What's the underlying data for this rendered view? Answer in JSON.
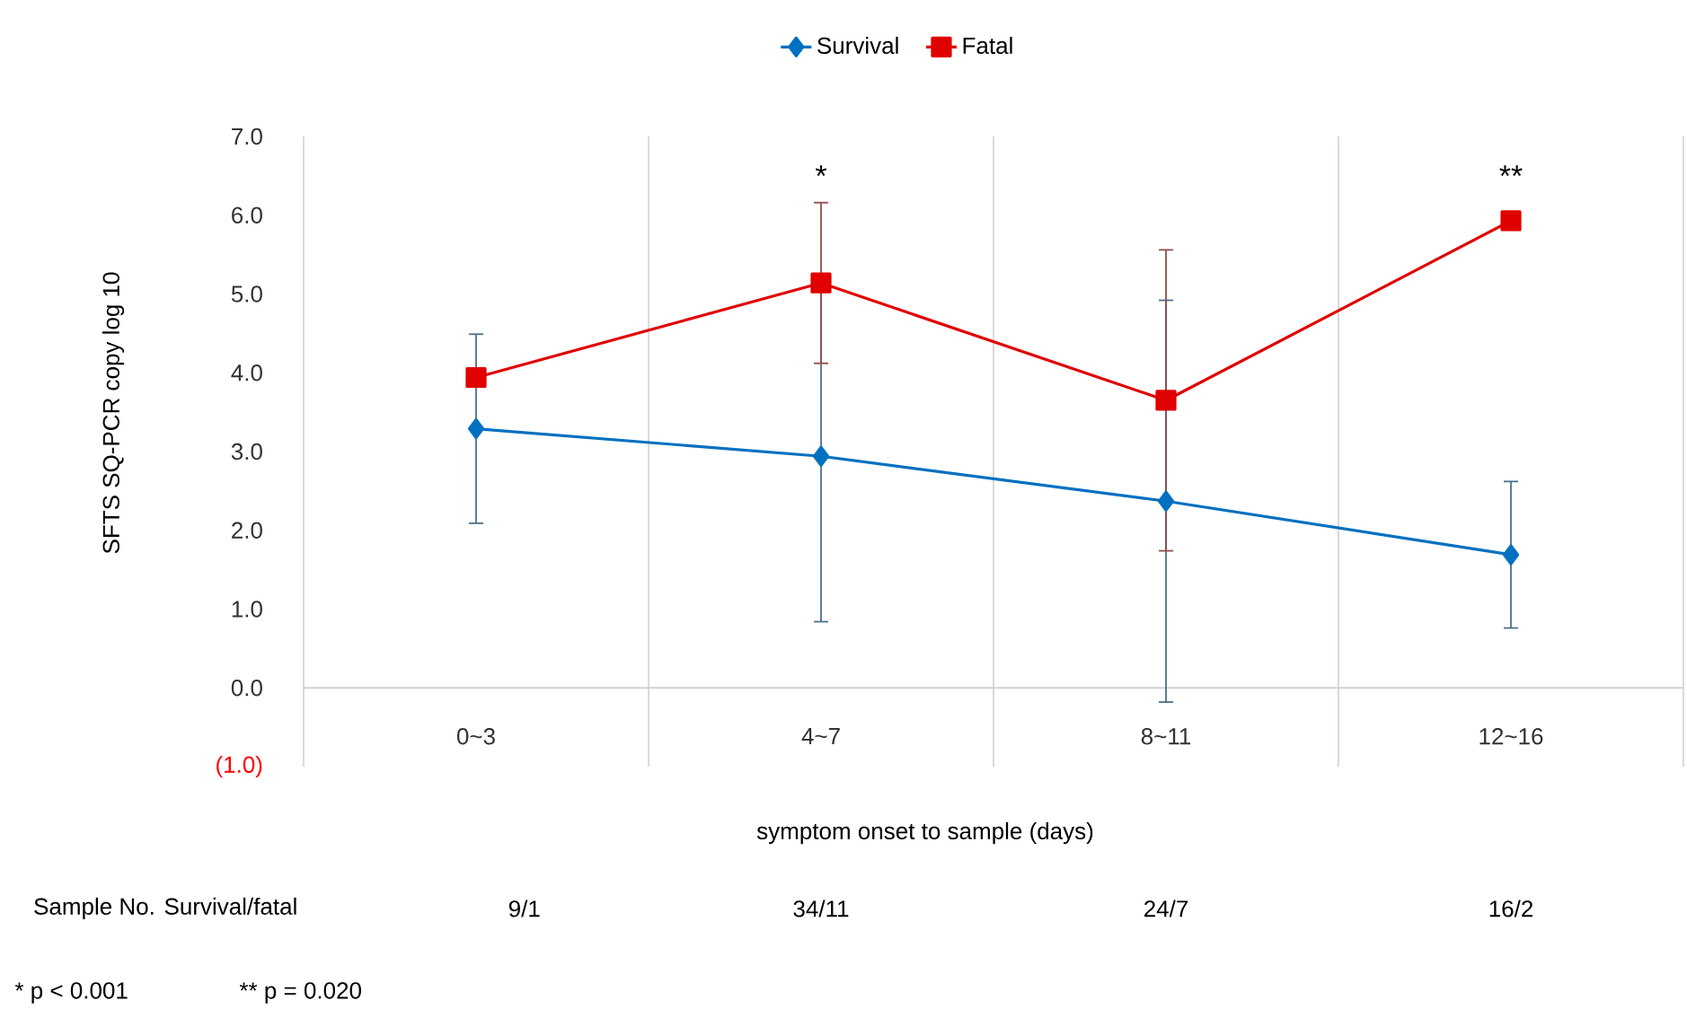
{
  "chart_data": {
    "type": "line",
    "categories": [
      "0~3",
      "4~7",
      "8~11",
      "12~16"
    ],
    "series": [
      {
        "name": "Survival",
        "color": "#0070c0",
        "marker": "diamond",
        "values": [
          3.29,
          2.94,
          2.37,
          1.69
        ],
        "errors": [
          1.2,
          2.1,
          2.55,
          0.93
        ]
      },
      {
        "name": "Fatal",
        "color": "#e00000",
        "marker": "square",
        "values": [
          3.94,
          5.14,
          3.65,
          5.93
        ],
        "errors": [
          null,
          1.02,
          1.91,
          null
        ]
      }
    ],
    "ylim": [
      -1,
      7
    ],
    "yticks": [
      {
        "value": -1,
        "label": "(1.0)"
      },
      {
        "value": 0,
        "label": "0.0"
      },
      {
        "value": 1,
        "label": "1.0"
      },
      {
        "value": 2,
        "label": "2.0"
      },
      {
        "value": 3,
        "label": "3.0"
      },
      {
        "value": 4,
        "label": "4.0"
      },
      {
        "value": 5,
        "label": "5.0"
      },
      {
        "value": 6,
        "label": "6.0"
      },
      {
        "value": 7,
        "label": "7.0"
      }
    ],
    "ylabel": "SFTS SQ-PCR copy log 10",
    "xlabel": "symptom onset to sample (days)",
    "grid": "x",
    "legend": "top",
    "annotations": [
      "*",
      "**",
      "Sample No. Survival/fatal",
      "9/1",
      "34/11",
      "24/7",
      "16/2",
      "* p < 0.001",
      "** p = 0.020"
    ]
  }
}
